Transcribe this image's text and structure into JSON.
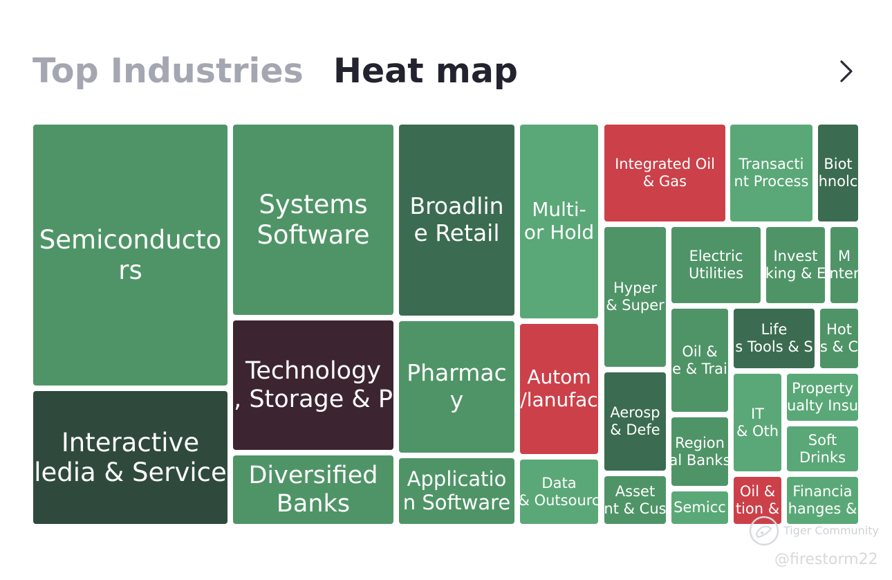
{
  "header": {
    "tab_top_industries": "Top Industries",
    "tab_heat_map": "Heat map",
    "next_icon": "chevron-right-icon"
  },
  "colors": {
    "green_light": "#5aa877",
    "green_mid": "#4f9467",
    "green_dark": "#3b6b50",
    "green_darkest": "#2f4a3d",
    "red": "#cc4049",
    "maroon": "#3c2530"
  },
  "tiles": [
    {
      "label": "Semiconducto\nrs",
      "color": "#4f9467"
    },
    {
      "label": "Interactive\nledia & Service",
      "color": "#2f4a3d"
    },
    {
      "label": "Systems\nSoftware",
      "color": "#4f9467"
    },
    {
      "label": "Technology\n, Storage & P",
      "color": "#3c2530"
    },
    {
      "label": "Diversified\nBanks",
      "color": "#4f9467"
    },
    {
      "label": "Broadlin\ne Retail",
      "color": "#3b6b50"
    },
    {
      "label": "Pharmac\ny",
      "color": "#4f9467"
    },
    {
      "label": "Applicatio\nn Software",
      "color": "#4f9467"
    },
    {
      "label": "Multi-\nor Hold",
      "color": "#5aa877"
    },
    {
      "label": "Autom\n/lanufac",
      "color": "#cc4049"
    },
    {
      "label": "Data\n& Outsourc",
      "color": "#5aa877"
    },
    {
      "label": "Integrated Oil\n& Gas",
      "color": "#cc4049"
    },
    {
      "label": "Transacti\nnt Process",
      "color": "#5aa877"
    },
    {
      "label": "Biot\nhnolc",
      "color": "#3b6b50"
    },
    {
      "label": "Hyper\n& Super",
      "color": "#4f9467"
    },
    {
      "label": "Electric\nUtilities",
      "color": "#4f9467"
    },
    {
      "label": "Invest\nking & E",
      "color": "#4f9467"
    },
    {
      "label": "M\nnter",
      "color": "#4f9467"
    },
    {
      "label": "Aerosp\n& Defe",
      "color": "#3b6b50"
    },
    {
      "label": "Oil &\ne & Trai",
      "color": "#4f9467"
    },
    {
      "label": "Life\ns Tools & S",
      "color": "#3b6b50"
    },
    {
      "label": "Hot\ns & C",
      "color": "#4f9467"
    },
    {
      "label": "IT\n& Oth",
      "color": "#5aa877"
    },
    {
      "label": "Property\nualty Insu",
      "color": "#5aa877"
    },
    {
      "label": "Region\nal Banks",
      "color": "#4f9467"
    },
    {
      "label": "Soft\nDrinks",
      "color": "#5aa877"
    },
    {
      "label": "Asset\nnt & Cus",
      "color": "#4f9467"
    },
    {
      "label": "Semicc",
      "color": "#5aa877"
    },
    {
      "label": "Oil &\ntion &",
      "color": "#cc4049"
    },
    {
      "label": "Financia\nhanges &",
      "color": "#5aa877"
    }
  ],
  "watermark": {
    "icon": "tiger-logo-icon",
    "name": "Tiger Community",
    "handle": "@firestorm22"
  }
}
